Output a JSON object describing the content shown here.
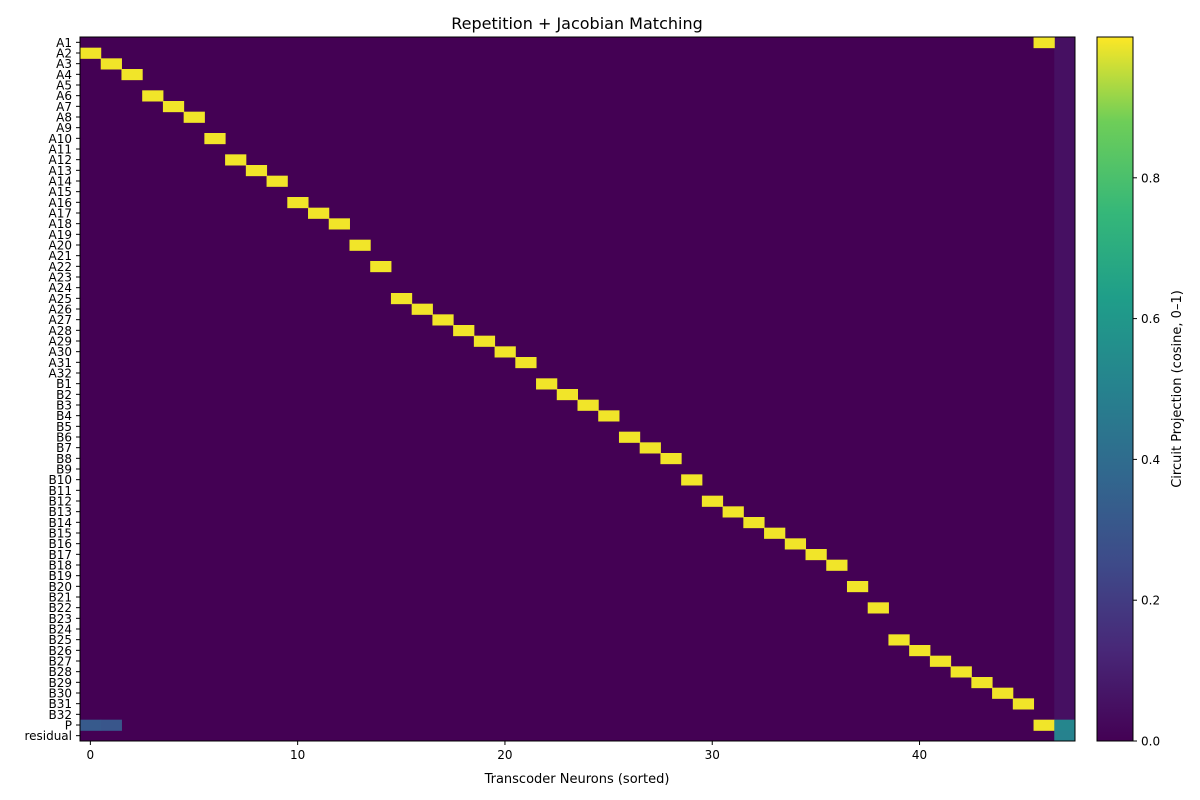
{
  "chart_data": {
    "type": "heatmap",
    "title": "Repetition + Jacobian Matching",
    "xlabel": "Transcoder Neurons (sorted)",
    "ylabel": "",
    "x_ticks": [
      0,
      10,
      20,
      30,
      40
    ],
    "x_count": 48,
    "rows": [
      "A1",
      "A2",
      "A3",
      "A4",
      "A5",
      "A6",
      "A7",
      "A8",
      "A9",
      "A10",
      "A11",
      "A12",
      "A13",
      "A14",
      "A15",
      "A16",
      "A17",
      "A18",
      "A19",
      "A20",
      "A21",
      "A22",
      "A23",
      "A24",
      "A25",
      "A26",
      "A27",
      "A28",
      "A29",
      "A30",
      "A31",
      "A32",
      "B1",
      "B2",
      "B3",
      "B4",
      "B5",
      "B6",
      "B7",
      "B8",
      "B9",
      "B10",
      "B11",
      "B12",
      "B13",
      "B14",
      "B15",
      "B16",
      "B17",
      "B18",
      "B19",
      "B20",
      "B21",
      "B22",
      "B23",
      "B24",
      "B25",
      "B26",
      "B27",
      "B28",
      "B29",
      "B30",
      "B31",
      "B32",
      "P",
      "residual"
    ],
    "peak_columns": [
      46,
      0,
      1,
      2,
      null,
      3,
      4,
      5,
      null,
      6,
      null,
      7,
      8,
      9,
      null,
      10,
      11,
      12,
      null,
      13,
      null,
      14,
      null,
      null,
      15,
      16,
      17,
      18,
      19,
      20,
      21,
      null,
      22,
      23,
      24,
      25,
      null,
      26,
      27,
      28,
      null,
      29,
      null,
      30,
      31,
      32,
      33,
      34,
      35,
      36,
      null,
      37,
      null,
      38,
      null,
      null,
      39,
      40,
      41,
      42,
      43,
      44,
      45,
      null,
      46,
      null
    ],
    "peak_value": 0.99,
    "p_row_highlights": [
      {
        "col": 0,
        "value": 0.32
      },
      {
        "col": 1,
        "value": 0.3
      },
      {
        "col": 47,
        "value": 0.52
      }
    ],
    "residual_highlights": [
      {
        "col": 47,
        "value": 0.5
      }
    ],
    "colorbar": {
      "label": "Circuit Projection (cosine, 0–1)",
      "ticks": [
        "0.0",
        "0.2",
        "0.4",
        "0.6",
        "0.8"
      ],
      "range": [
        0,
        1
      ],
      "colormap": "viridis"
    }
  }
}
